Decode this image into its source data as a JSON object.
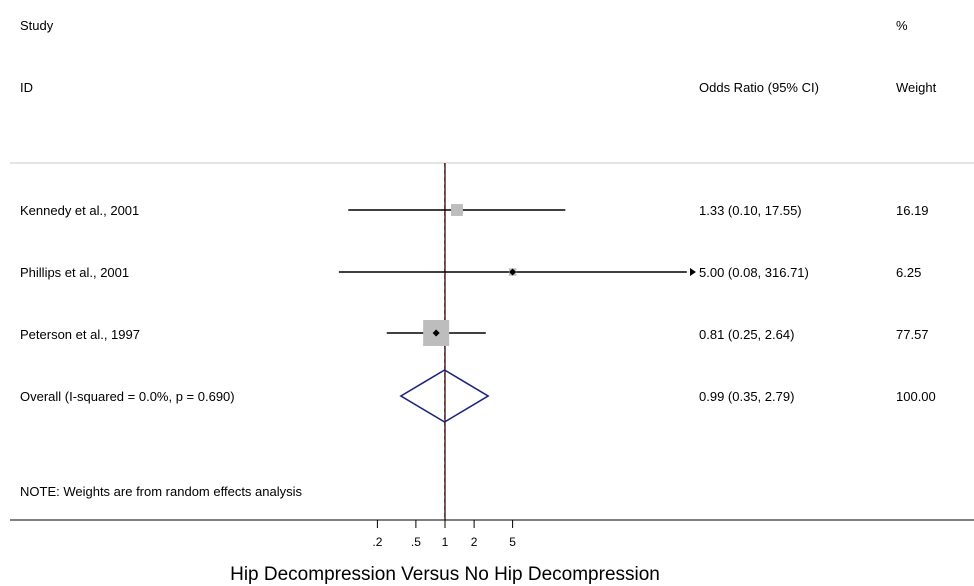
{
  "chart_data": {
    "type": "forest",
    "scale": "log",
    "x_ticks": [
      "0.2",
      "0.5",
      "1",
      "2",
      "5"
    ],
    "x_tick_labels": [
      ".2",
      ".5",
      "1",
      "2",
      "5"
    ],
    "xlabel": "Hip Decompression Versus No Hip Decompression",
    "reference_line": 1,
    "pooled_line": 0.99,
    "headers": {
      "study_line1": "Study",
      "study_line2": "ID",
      "or": "Odds Ratio (95% CI)",
      "weight_line1": "%",
      "weight_line2": "Weight"
    },
    "studies": [
      {
        "id": "Kennedy et al., 2001",
        "or": 1.33,
        "lo": 0.1,
        "hi": 17.55,
        "weight": 16.19,
        "label": "1.33 (0.10, 17.55)",
        "weight_label": "16.19"
      },
      {
        "id": "Phillips et al., 2001",
        "or": 5.0,
        "lo": 0.08,
        "hi": 316.71,
        "weight": 6.25,
        "label": "5.00 (0.08, 316.71)",
        "weight_label": "6.25",
        "arrow_right": true
      },
      {
        "id": "Peterson et al., 1997",
        "or": 0.81,
        "lo": 0.25,
        "hi": 2.64,
        "weight": 77.57,
        "label": "0.81 (0.25, 2.64)",
        "weight_label": "77.57"
      }
    ],
    "overall": {
      "id": "Overall  (I-squared = 0.0%, p = 0.690)",
      "or": 0.99,
      "lo": 0.35,
      "hi": 2.79,
      "label": "0.99 (0.35, 2.79)",
      "weight_label": "100.00"
    },
    "note": "NOTE: Weights are from random effects analysis",
    "colors": {
      "ci_line": "#000000",
      "box": "#bdbdbd",
      "diamond": "#1a237e",
      "pooled_line": "#8b1a1a"
    }
  }
}
